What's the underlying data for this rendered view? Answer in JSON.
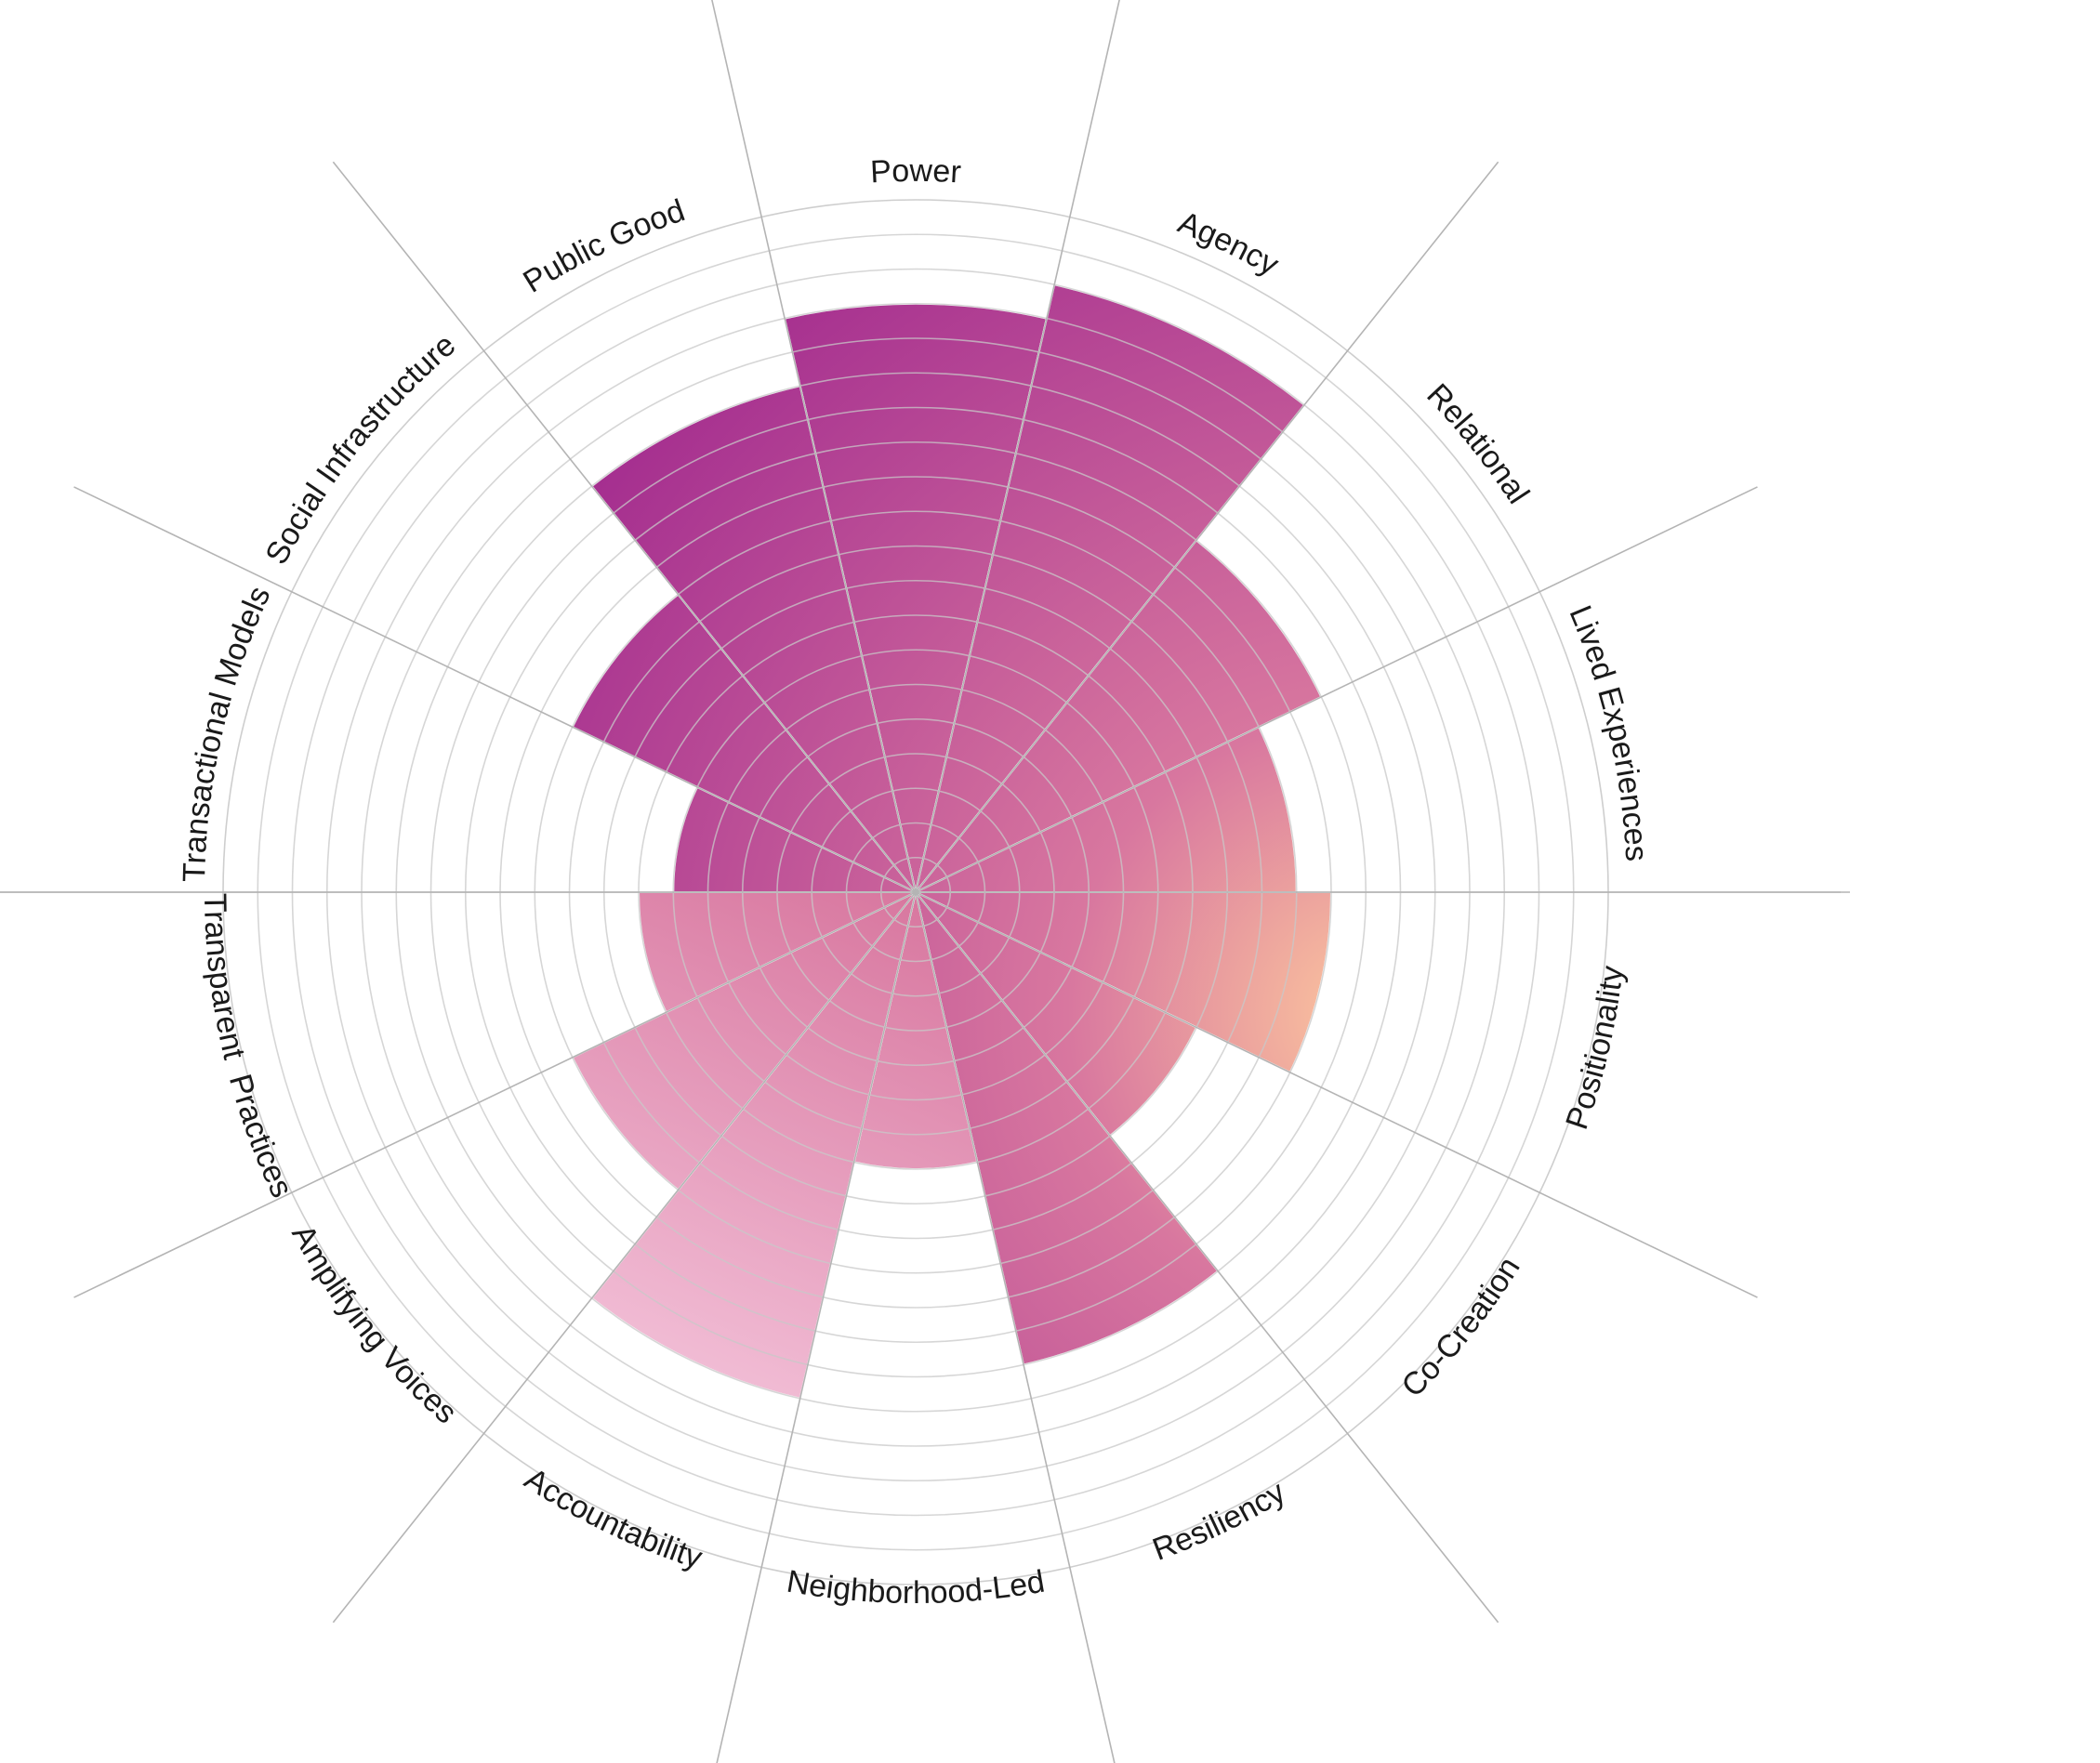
{
  "chart_data": {
    "type": "polar-area",
    "title": "",
    "rings": 20,
    "max_value": 20,
    "categories": [
      "Power",
      "Agency",
      "Relational",
      "Lived Experiences",
      "Positionality",
      "Co-Creation",
      "Resiliency",
      "Neighborhood-Led",
      "Accountability",
      "Amplifying Voices",
      "Transparent  Practices",
      "Transactional Models",
      "Social Infrastructure",
      "Public Good"
    ],
    "values": [
      17,
      18,
      13,
      11,
      12,
      9,
      14,
      8,
      15,
      11,
      8,
      7,
      11,
      15
    ],
    "grid": true,
    "colors": {
      "deep_magenta": "#9a1f8c",
      "mid_pink": "#d8779f",
      "light_pink": "#f5c7dd",
      "peach": "#fcc69e",
      "grid_line": "#c8c8c8",
      "axis_line": "#b4b4b4"
    }
  }
}
